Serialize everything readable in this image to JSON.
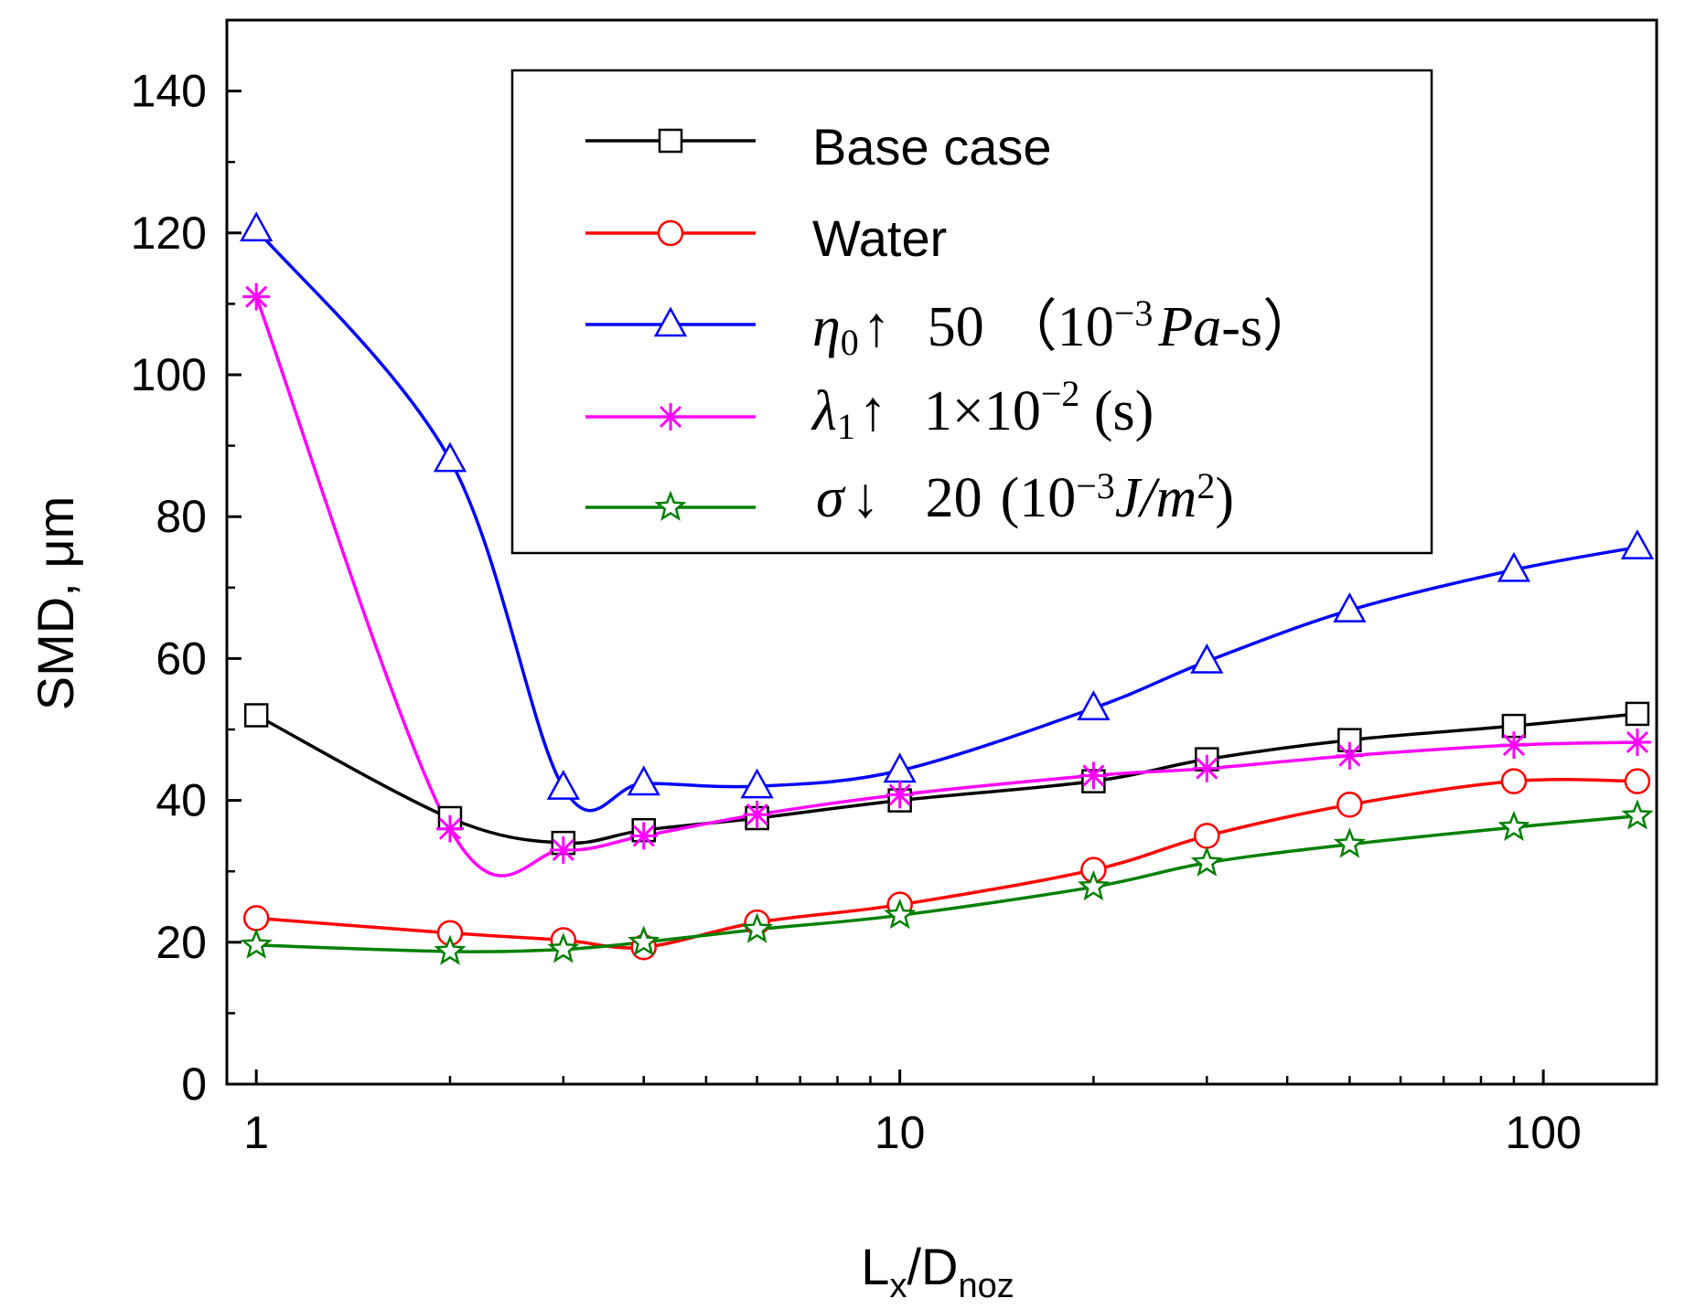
{
  "chart_data": {
    "type": "line",
    "xscale": "log",
    "xlabel_main": "L",
    "xlabel_sub1": "x",
    "xlabel_sep": "/D",
    "xlabel_sub2": "noz",
    "ylabel": "SMD, μm",
    "xlim": [
      0.9,
      150
    ],
    "ylim": [
      0,
      150
    ],
    "x_ticks": [
      1,
      10,
      100
    ],
    "x_tick_labels": [
      "1",
      "10",
      "100"
    ],
    "y_ticks": [
      0,
      20,
      40,
      60,
      80,
      100,
      120,
      140
    ],
    "y_tick_labels": [
      "0",
      "20",
      "40",
      "60",
      "80",
      "100",
      "120",
      "140"
    ],
    "x": [
      1,
      2,
      3,
      4,
      6,
      10,
      20,
      30,
      50,
      90,
      140
    ],
    "series": [
      {
        "name": "Base case",
        "color": "#000000",
        "marker": "square",
        "values": [
          52,
          37.5,
          34,
          35.8,
          37.5,
          40,
          42.7,
          45.8,
          48.5,
          50.5,
          52.2
        ]
      },
      {
        "name": "Water",
        "color": "#ff0000",
        "marker": "circle",
        "values": [
          23.4,
          21.3,
          20.3,
          19.3,
          22.8,
          25.3,
          30.2,
          35,
          39.4,
          42.7,
          42.7
        ]
      },
      {
        "name": "η0↑ 50 (10⁻³ Pa-s)",
        "color": "#0000ff",
        "marker": "triangle",
        "values": [
          120.5,
          88,
          41.8,
          42.4,
          42,
          44.2,
          53,
          59.6,
          66.8,
          72.5,
          75.7
        ]
      },
      {
        "name": "λ1↑ 1×10⁻² (s)",
        "color": "#ff00ff",
        "marker": "asterisk",
        "values": [
          111,
          36,
          33,
          35,
          38,
          40.8,
          43.5,
          44.5,
          46.3,
          47.8,
          48.2
        ]
      },
      {
        "name": "σ↓ 20 (10⁻³ J/m²)",
        "color": "#008000",
        "marker": "star",
        "values": [
          19.6,
          18.7,
          19,
          20,
          21.8,
          23.8,
          27.8,
          31.2,
          33.8,
          36.2,
          37.8
        ]
      }
    ],
    "legend": {
      "position": "top",
      "entries": [
        {
          "parts": {
            "label": "Base case"
          }
        },
        {
          "parts": {
            "label": "Water"
          }
        },
        {
          "parts": {
            "symbol": "η",
            "sub": "0",
            "arrow": "↑",
            "value": "50",
            "open": "（10",
            "exp": "−3",
            "unit": "Pa",
            "unit_tail": "-s）"
          }
        },
        {
          "parts": {
            "symbol": "λ",
            "sub": "1",
            "arrow": "↑",
            "value": "1×10",
            "exp": "−2",
            "unit_tail": " (s)"
          }
        },
        {
          "parts": {
            "symbol": "σ",
            "arrow": "↓",
            "value": "20",
            "open": "(10",
            "exp": "−3",
            "unit": "J/m",
            "exp2": "2",
            "close": ")"
          }
        }
      ]
    }
  }
}
